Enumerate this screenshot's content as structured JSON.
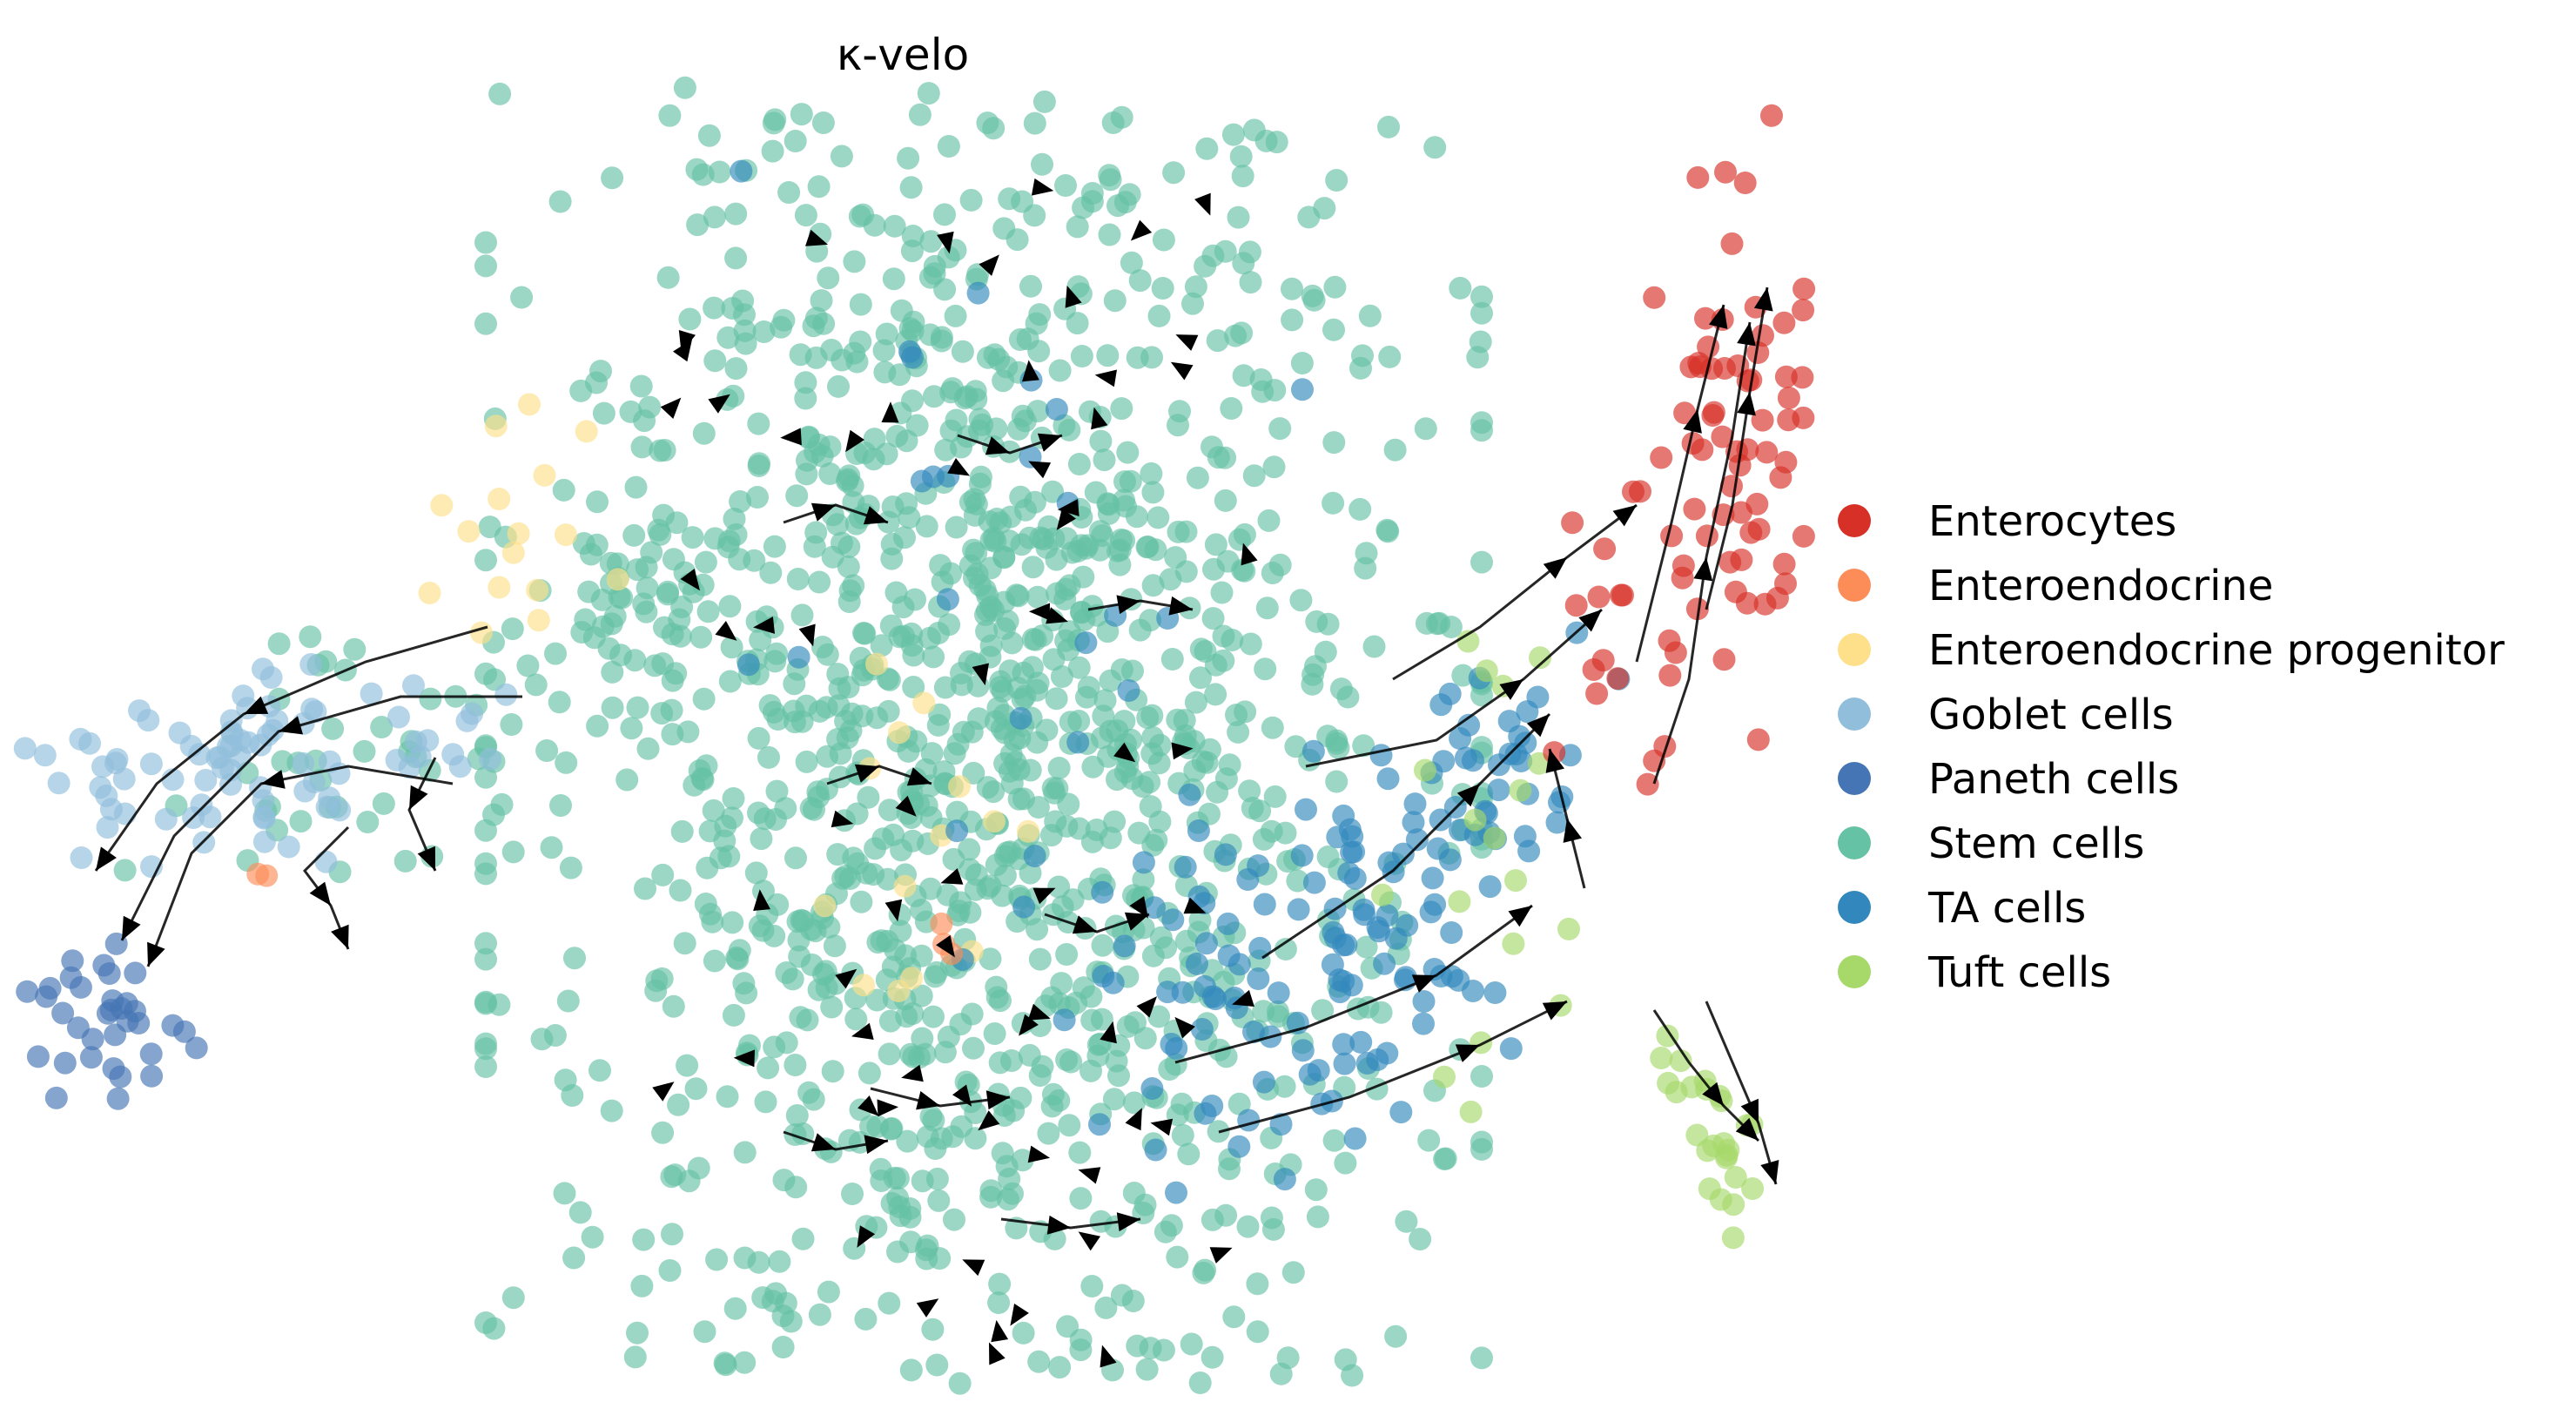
{
  "chart_data": {
    "type": "scatter",
    "title": "κ-velo",
    "xlabel": "",
    "ylabel": "",
    "axes_visible": false,
    "grid": false,
    "legend_position": "right",
    "overlay": "velocity stream arrows",
    "series": [
      {
        "name": "Enterocytes",
        "color": "#d73027",
        "clusters": [
          {
            "cx": 1982,
            "cy": 535,
            "sx": 65,
            "sy": 235,
            "rot": 20,
            "n": 110
          }
        ]
      },
      {
        "name": "Enteroendocrine",
        "color": "#fc8d59",
        "clusters": [
          {
            "cx": 308,
            "cy": 1000,
            "sx": 6,
            "sy": 6,
            "rot": 0,
            "n": 2
          },
          {
            "cx": 1075,
            "cy": 1070,
            "sx": 20,
            "sy": 30,
            "rot": 0,
            "n": 3
          }
        ]
      },
      {
        "name": "Enteroendocrine progenitor",
        "color": "#fee08b",
        "clusters": [
          {
            "cx": 600,
            "cy": 640,
            "sx": 55,
            "sy": 80,
            "rot": 0,
            "n": 16
          },
          {
            "cx": 1060,
            "cy": 1000,
            "sx": 55,
            "sy": 140,
            "rot": 0,
            "n": 14
          }
        ]
      },
      {
        "name": "Goblet cells",
        "color": "#91bfdb",
        "clusters": [
          {
            "cx": 300,
            "cy": 880,
            "sx": 135,
            "sy": 55,
            "rot": -10,
            "n": 85
          }
        ]
      },
      {
        "name": "Paneth cells",
        "color": "#4575b4",
        "clusters": [
          {
            "cx": 115,
            "cy": 1160,
            "sx": 45,
            "sy": 45,
            "rot": -35,
            "n": 35
          }
        ]
      },
      {
        "name": "Stem cells",
        "color": "#66c2a5",
        "clusters": [
          {
            "cx": 1130,
            "cy": 830,
            "sx": 260,
            "sy": 420,
            "rot": 0,
            "n": 1450
          },
          {
            "cx": 430,
            "cy": 850,
            "sx": 140,
            "sy": 65,
            "rot": -10,
            "n": 45
          },
          {
            "cx": 780,
            "cy": 660,
            "sx": 100,
            "sy": 140,
            "rot": 0,
            "n": 30
          }
        ]
      },
      {
        "name": "TA cells",
        "color": "#3288bd",
        "clusters": [
          {
            "cx": 1520,
            "cy": 1100,
            "sx": 150,
            "sy": 90,
            "rot": -30,
            "n": 110
          },
          {
            "cx": 1700,
            "cy": 880,
            "sx": 90,
            "sy": 60,
            "rot": -30,
            "n": 40
          },
          {
            "cx": 1100,
            "cy": 700,
            "sx": 180,
            "sy": 250,
            "rot": 0,
            "n": 30
          }
        ]
      },
      {
        "name": "Tuft cells",
        "color": "#a6d96a",
        "clusters": [
          {
            "cx": 1965,
            "cy": 1300,
            "sx": 25,
            "sy": 55,
            "rot": -25,
            "n": 25
          },
          {
            "cx": 1720,
            "cy": 1000,
            "sx": 60,
            "sy": 160,
            "rot": 0,
            "n": 18
          }
        ]
      }
    ]
  }
}
